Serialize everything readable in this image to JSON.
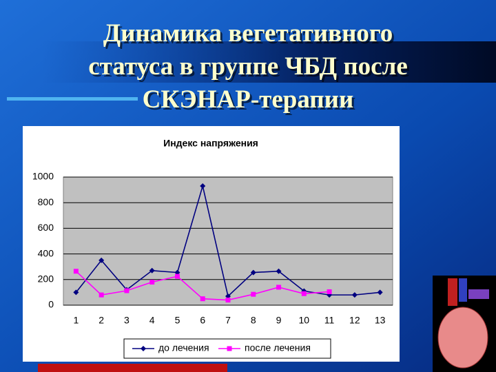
{
  "slide": {
    "title_lines": [
      "Динамика вегетативного",
      "статуса в группе ЧБД после",
      "СКЭНАР-терапии"
    ]
  },
  "chart_data": {
    "type": "line",
    "title": "Индекс напряжения",
    "categories": [
      "1",
      "2",
      "3",
      "4",
      "5",
      "6",
      "7",
      "8",
      "9",
      "10",
      "11",
      "12",
      "13"
    ],
    "series": [
      {
        "name": "до лечения",
        "color": "#000080",
        "marker": "diamond",
        "values": [
          100,
          350,
          120,
          270,
          255,
          930,
          70,
          255,
          265,
          110,
          80,
          80,
          100
        ]
      },
      {
        "name": "после лечения",
        "color": "#ff00ff",
        "marker": "square",
        "values": [
          265,
          80,
          113,
          180,
          225,
          50,
          40,
          85,
          140,
          90,
          105,
          null,
          null
        ]
      }
    ],
    "ylim": [
      0,
      1000
    ],
    "yticks": [
      0,
      200,
      400,
      600,
      800,
      1000
    ],
    "grid": true,
    "legend": "bottom"
  }
}
